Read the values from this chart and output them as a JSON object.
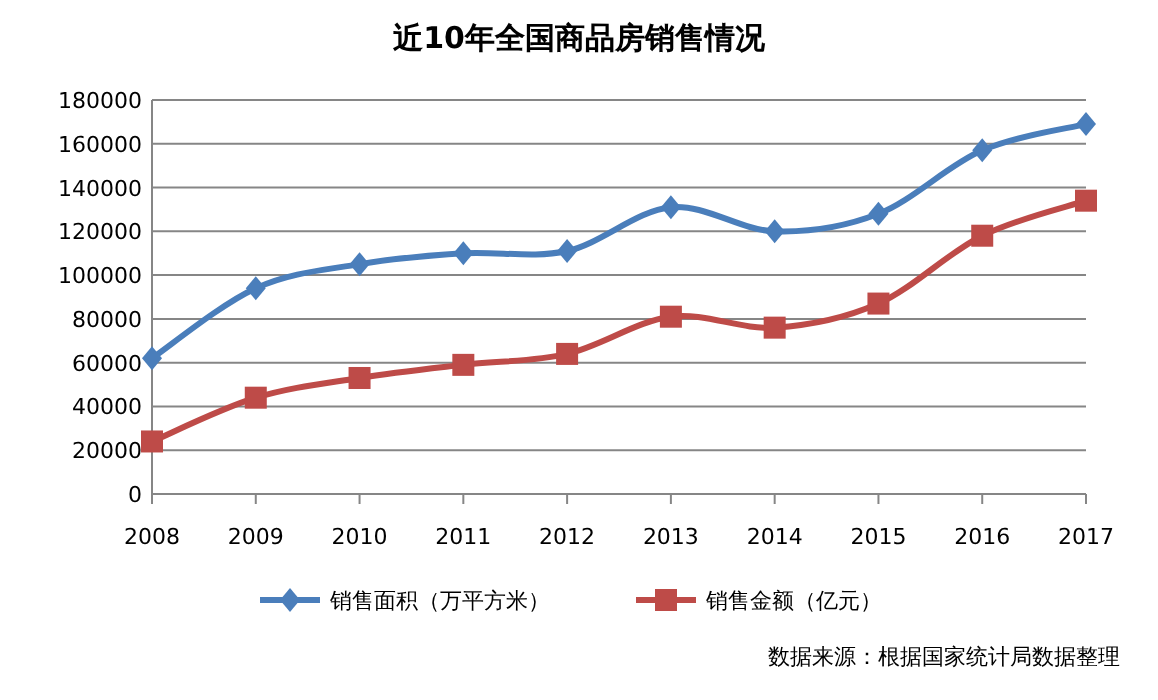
{
  "chart_data": {
    "type": "line",
    "title": "近10年全国商品房销售情况",
    "categories": [
      "2008",
      "2009",
      "2010",
      "2011",
      "2012",
      "2013",
      "2014",
      "2015",
      "2016",
      "2017"
    ],
    "series": [
      {
        "name": "销售面积（万平方米）",
        "color": "#4a7ebb",
        "marker": "diamond",
        "values": [
          62000,
          94000,
          105000,
          110000,
          111000,
          131000,
          120000,
          128000,
          157000,
          169000
        ]
      },
      {
        "name": "销售金额（亿元）",
        "color": "#be4b48",
        "marker": "square",
        "values": [
          24000,
          44000,
          53000,
          59000,
          64000,
          81000,
          76000,
          87000,
          118000,
          134000
        ]
      }
    ],
    "ylim": [
      0,
      180000
    ],
    "yticks": [
      0,
      20000,
      40000,
      60000,
      80000,
      100000,
      120000,
      140000,
      160000,
      180000
    ],
    "grid": "y",
    "legend": "bottom",
    "annotations": [
      "数据来源：根据国家统计局数据整理"
    ]
  }
}
